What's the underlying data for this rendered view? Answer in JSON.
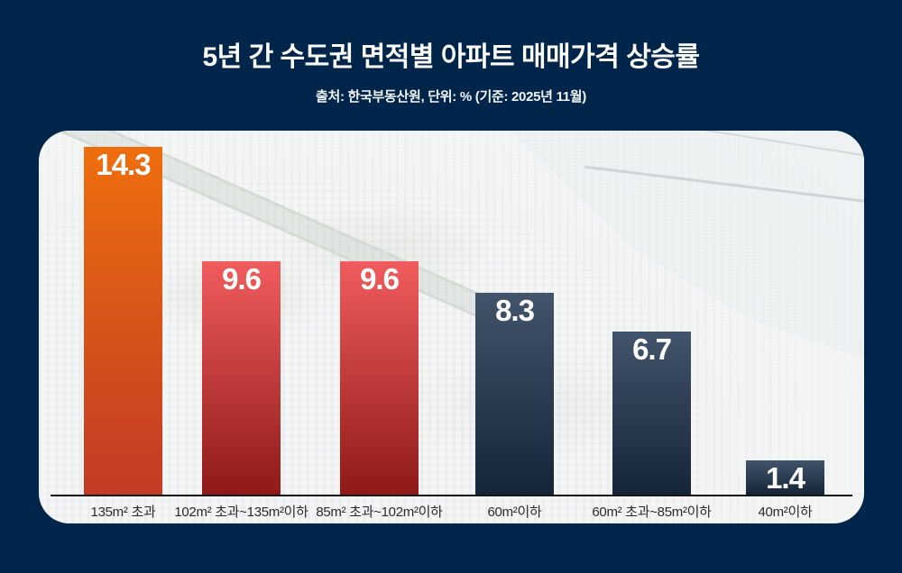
{
  "header": {
    "title": "5년 간 수도권 면적별 아파트 매매가격 상승률",
    "subtitle": "출처: 한국부동산원, 단위: % (기준: 2025년 11월)"
  },
  "chart_data": {
    "type": "bar",
    "title": "5년 간 수도권 면적별 아파트 매매가격 상승률",
    "source_note": "출처: 한국부동산원",
    "unit": "%",
    "as_of": "2025년 11월",
    "categories": [
      "135m² 초과",
      "102m² 초과~135m²이하",
      "85m² 초과~102m²이하",
      "60m²이하",
      "60m² 초과~85m²이하",
      "40m²이하"
    ],
    "values": [
      14.3,
      9.6,
      9.6,
      8.3,
      6.7,
      1.4
    ],
    "data_labels_shown": true,
    "ylim": [
      0,
      15
    ],
    "grid": false,
    "legend": "none",
    "bar_styles": [
      {
        "top": "#ee6e0d",
        "bottom": "#c33a26"
      },
      {
        "top": "#f15c5e",
        "bottom": "#8e1a18"
      },
      {
        "top": "#f15c5e",
        "bottom": "#8e1a18"
      },
      {
        "top": "#42546b",
        "bottom": "#152538"
      },
      {
        "top": "#42546b",
        "bottom": "#152538"
      },
      {
        "top": "#42546b",
        "bottom": "#152538"
      }
    ]
  },
  "colors": {
    "page_background": "#00254a",
    "card_background": "#edefef",
    "title_text": "#ffffff",
    "subtitle_text": "#f2f6fa",
    "axis_line": "#141414",
    "category_text": "#2b2b2b",
    "value_text": "#ffffff"
  }
}
